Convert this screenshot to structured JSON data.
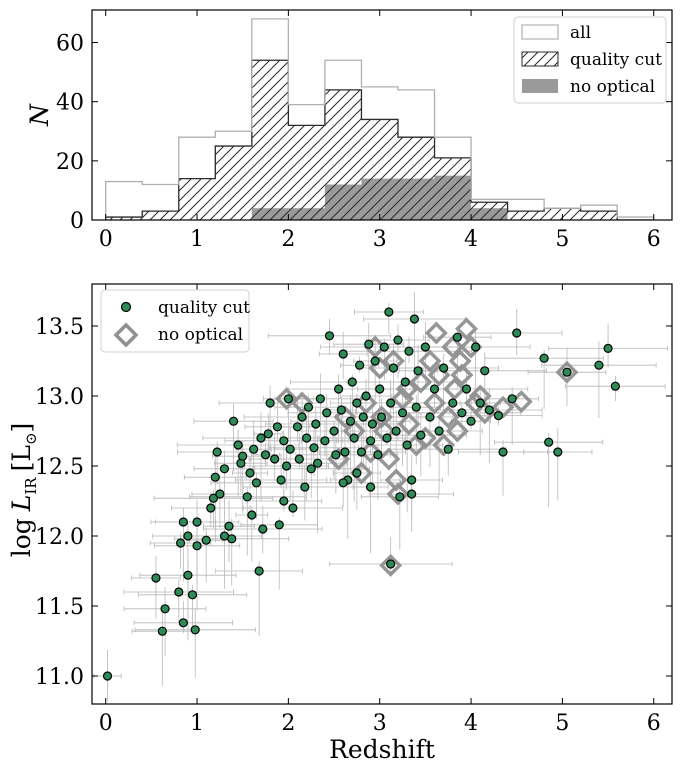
{
  "chart_data": [
    {
      "type": "histogram",
      "panel": "top",
      "xlabel": "",
      "ylabel": "N",
      "xlim": [
        -0.15,
        6.2
      ],
      "ylim": [
        0,
        71
      ],
      "xticks": [
        0,
        1,
        2,
        3,
        4,
        5,
        6
      ],
      "xtick_labels": [
        "0",
        "1",
        "2",
        "3",
        "4",
        "5",
        "6"
      ],
      "yticks": [
        0,
        20,
        40,
        60
      ],
      "ytick_labels": [
        "0",
        "20",
        "40",
        "60"
      ],
      "bin_edges": [
        0.0,
        0.4,
        0.8,
        1.2,
        1.6,
        2.0,
        2.4,
        2.8,
        3.2,
        3.6,
        4.0,
        4.4,
        4.8,
        5.2,
        5.6,
        6.0
      ],
      "legend_position": "top-right",
      "series": [
        {
          "name": "all",
          "style": "step-outline",
          "color": "#b0b0b0",
          "values": [
            13,
            12,
            28,
            30,
            68,
            39,
            54,
            45,
            44,
            28,
            7,
            7,
            4,
            5,
            1
          ]
        },
        {
          "name": "quality cut",
          "style": "hatched",
          "color": "#2a2a2a",
          "values": [
            1,
            3,
            14,
            25,
            54,
            32,
            44,
            34,
            28,
            21,
            6,
            3,
            4,
            3,
            0
          ]
        },
        {
          "name": "no optical",
          "style": "filled",
          "color": "#9a9a9a",
          "values": [
            0,
            0,
            0,
            0,
            4,
            4,
            12,
            14,
            14,
            15,
            4,
            0,
            0,
            0,
            0
          ]
        }
      ]
    },
    {
      "type": "scatter",
      "panel": "bottom",
      "xlabel": "Redshift",
      "ylabel_text": "log",
      "ylabel_var": "L",
      "ylabel_sub": "IR",
      "ylabel_unit": "[L",
      "ylabel_unit_close": "]",
      "xlim": [
        -0.15,
        6.2
      ],
      "ylim": [
        10.8,
        13.8
      ],
      "xticks": [
        0,
        1,
        2,
        3,
        4,
        5,
        6
      ],
      "xtick_labels": [
        "0",
        "1",
        "2",
        "3",
        "4",
        "5",
        "6"
      ],
      "yticks": [
        11.0,
        11.5,
        12.0,
        12.5,
        13.0,
        13.5
      ],
      "ytick_labels": [
        "11.0",
        "11.5",
        "12.0",
        "12.5",
        "13.0",
        "13.5"
      ],
      "legend_position": "top-left",
      "series": [
        {
          "name": "quality cut",
          "marker": "circle",
          "color": "#2e8b57",
          "edge": "#000000",
          "points": [
            [
              0.02,
              11.0
            ],
            [
              0.55,
              11.7
            ],
            [
              0.62,
              11.32
            ],
            [
              0.65,
              11.48
            ],
            [
              0.8,
              11.6
            ],
            [
              0.85,
              11.38
            ],
            [
              0.9,
              11.72
            ],
            [
              0.95,
              11.58
            ],
            [
              0.98,
              11.33
            ],
            [
              1.0,
              11.93
            ],
            [
              0.85,
              12.1
            ],
            [
              0.82,
              11.95
            ],
            [
              0.9,
              12.0
            ],
            [
              1.0,
              12.1
            ],
            [
              1.1,
              11.97
            ],
            [
              1.15,
              12.2
            ],
            [
              1.18,
              12.27
            ],
            [
              1.2,
              12.42
            ],
            [
              1.22,
              12.6
            ],
            [
              1.25,
              12.3
            ],
            [
              1.3,
              12.48
            ],
            [
              1.35,
              12.07
            ],
            [
              1.38,
              11.98
            ],
            [
              1.4,
              12.82
            ],
            [
              1.45,
              12.65
            ],
            [
              1.48,
              12.52
            ],
            [
              1.5,
              12.57
            ],
            [
              1.55,
              12.28
            ],
            [
              1.58,
              12.45
            ],
            [
              1.62,
              12.62
            ],
            [
              1.65,
              12.38
            ],
            [
              1.68,
              11.75
            ],
            [
              1.7,
              12.7
            ],
            [
              1.72,
              12.05
            ],
            [
              1.75,
              12.58
            ],
            [
              1.78,
              12.73
            ],
            [
              1.8,
              12.95
            ],
            [
              1.85,
              12.55
            ],
            [
              1.88,
              12.78
            ],
            [
              1.9,
              12.08
            ],
            [
              1.92,
              12.4
            ],
            [
              1.95,
              12.68
            ],
            [
              1.98,
              12.5
            ],
            [
              2.0,
              12.98
            ],
            [
              2.02,
              12.62
            ],
            [
              2.05,
              12.2
            ],
            [
              2.1,
              12.78
            ],
            [
              2.12,
              12.55
            ],
            [
              2.15,
              12.85
            ],
            [
              2.18,
              12.35
            ],
            [
              2.2,
              12.7
            ],
            [
              2.22,
              12.92
            ],
            [
              2.25,
              12.48
            ],
            [
              2.28,
              12.63
            ],
            [
              2.3,
              12.8
            ],
            [
              2.32,
              12.52
            ],
            [
              2.35,
              12.98
            ],
            [
              2.4,
              12.68
            ],
            [
              2.42,
              12.88
            ],
            [
              2.45,
              13.43
            ],
            [
              2.5,
              12.75
            ],
            [
              2.52,
              12.58
            ],
            [
              2.55,
              13.05
            ],
            [
              2.58,
              12.9
            ],
            [
              2.6,
              13.3
            ],
            [
              2.62,
              12.6
            ],
            [
              2.65,
              12.4
            ],
            [
              2.68,
              12.82
            ],
            [
              2.7,
              13.1
            ],
            [
              2.72,
              12.7
            ],
            [
              2.75,
              12.95
            ],
            [
              2.78,
              13.22
            ],
            [
              2.8,
              12.6
            ],
            [
              2.82,
              12.85
            ],
            [
              2.85,
              13.0
            ],
            [
              2.88,
              13.37
            ],
            [
              2.9,
              12.68
            ],
            [
              2.92,
              12.8
            ],
            [
              2.95,
              13.25
            ],
            [
              2.98,
              12.58
            ],
            [
              3.0,
              13.05
            ],
            [
              3.02,
              12.85
            ],
            [
              3.05,
              13.35
            ],
            [
              3.08,
              12.7
            ],
            [
              3.1,
              13.6
            ],
            [
              3.12,
              12.95
            ],
            [
              3.15,
              13.2
            ],
            [
              3.18,
              12.75
            ],
            [
              3.2,
              13.4
            ],
            [
              3.22,
              12.28
            ],
            [
              3.25,
              12.88
            ],
            [
              3.28,
              13.1
            ],
            [
              3.3,
              12.65
            ],
            [
              3.32,
              13.32
            ],
            [
              3.35,
              12.4
            ],
            [
              3.38,
              13.55
            ],
            [
              3.4,
              12.92
            ],
            [
              3.42,
              13.18
            ],
            [
              3.45,
              12.72
            ],
            [
              3.5,
              13.35
            ],
            [
              3.55,
              12.85
            ],
            [
              3.6,
              13.05
            ],
            [
              3.65,
              12.75
            ],
            [
              3.7,
              13.2
            ],
            [
              3.75,
              12.62
            ],
            [
              3.8,
              12.95
            ],
            [
              3.85,
              13.42
            ],
            [
              3.9,
              12.88
            ],
            [
              3.95,
              13.05
            ],
            [
              4.0,
              12.82
            ],
            [
              4.05,
              13.35
            ],
            [
              4.1,
              12.95
            ],
            [
              4.15,
              13.18
            ],
            [
              4.2,
              12.9
            ],
            [
              4.3,
              12.86
            ],
            [
              4.35,
              12.6
            ],
            [
              4.45,
              12.98
            ],
            [
              4.5,
              13.45
            ],
            [
              4.8,
              13.27
            ],
            [
              4.95,
              12.6
            ],
            [
              4.85,
              12.67
            ],
            [
              5.05,
              13.17
            ],
            [
              5.4,
              13.22
            ],
            [
              5.5,
              13.34
            ],
            [
              5.58,
              13.07
            ],
            [
              3.12,
              11.8
            ],
            [
              2.9,
              12.35
            ],
            [
              2.6,
              12.38
            ],
            [
              2.75,
              12.45
            ],
            [
              3.35,
              12.3
            ],
            [
              1.95,
              12.25
            ],
            [
              1.6,
              12.15
            ],
            [
              1.3,
              12.0
            ]
          ]
        },
        {
          "name": "no optical",
          "marker": "diamond",
          "color": "#909090",
          "points": [
            [
              1.98,
              12.98
            ],
            [
              2.15,
              12.95
            ],
            [
              2.55,
              12.55
            ],
            [
              2.62,
              12.85
            ],
            [
              2.72,
              12.75
            ],
            [
              2.8,
              12.45
            ],
            [
              2.85,
              12.95
            ],
            [
              2.9,
              12.6
            ],
            [
              2.95,
              13.35
            ],
            [
              3.0,
              13.2
            ],
            [
              3.02,
              12.85
            ],
            [
              3.05,
              12.75
            ],
            [
              3.1,
              12.55
            ],
            [
              3.12,
              11.79
            ],
            [
              3.15,
              13.25
            ],
            [
              3.18,
              12.4
            ],
            [
              3.2,
              12.3
            ],
            [
              3.25,
              12.98
            ],
            [
              3.3,
              13.05
            ],
            [
              3.32,
              12.8
            ],
            [
              3.4,
              12.65
            ],
            [
              3.45,
              13.1
            ],
            [
              3.5,
              12.7
            ],
            [
              3.55,
              13.25
            ],
            [
              3.6,
              12.95
            ],
            [
              3.62,
              13.45
            ],
            [
              3.65,
              13.15
            ],
            [
              3.7,
              12.65
            ],
            [
              3.75,
              12.85
            ],
            [
              3.8,
              13.35
            ],
            [
              3.82,
              13.05
            ],
            [
              3.85,
              12.75
            ],
            [
              3.88,
              13.25
            ],
            [
              3.9,
              13.15
            ],
            [
              3.95,
              13.48
            ],
            [
              4.0,
              13.35
            ],
            [
              4.05,
              12.95
            ],
            [
              4.1,
              13.0
            ],
            [
              4.15,
              12.88
            ],
            [
              4.35,
              12.92
            ],
            [
              4.55,
              12.96
            ],
            [
              5.05,
              13.17
            ]
          ]
        }
      ]
    }
  ],
  "legends": {
    "top": [
      "all",
      "quality cut",
      "no optical"
    ],
    "bottom": [
      "quality cut",
      "no optical"
    ]
  }
}
